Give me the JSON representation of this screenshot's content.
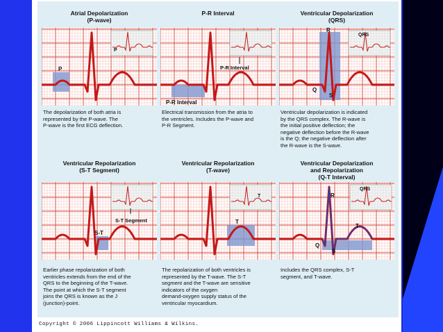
{
  "copyright": "Copyright © 2006 Lippincott Williams & Wilkins.",
  "panels": [
    {
      "key": "atrial-depolarization",
      "title_lines": [
        "Atrial Depolarization",
        "(P-wave)"
      ],
      "caption_lines": [
        "The depolarization of both atria is",
        "represented by the P-wave. The",
        "P-wave is the first ECG deflection."
      ],
      "labels": [
        {
          "id": "p-wave",
          "text": "P"
        },
        {
          "id": "inset-p",
          "text": "P"
        }
      ]
    },
    {
      "key": "pr-interval",
      "title_lines": [
        "P-R Interval"
      ],
      "caption_lines": [
        "Electrical transmission from the atria to",
        "the ventricles. Includes the P-wave and",
        "P-R Segment."
      ],
      "labels": [
        {
          "id": "pr-bottom",
          "text": "P-R Interval"
        },
        {
          "id": "pr-inset",
          "text": "P-R Interval"
        }
      ]
    },
    {
      "key": "ventricular-depolarization",
      "title_lines": [
        "Ventricular Depolarization",
        "(QRS)"
      ],
      "caption_lines": [
        "Ventricular depolarization is indicated",
        "by the QRS complex. The R-wave is",
        "the initial positive deflection; the",
        "negative deflection before the R-wave",
        "is the Q; the negative deflection after",
        "the R-wave is the S-wave."
      ],
      "labels": [
        {
          "id": "r",
          "text": "R"
        },
        {
          "id": "q",
          "text": "Q"
        },
        {
          "id": "s",
          "text": "S"
        },
        {
          "id": "inset-qrs",
          "text": "QRS"
        }
      ]
    },
    {
      "key": "st-segment",
      "title_lines": [
        "Ventricular Repolarization",
        "(S-T Segment)"
      ],
      "caption_lines": [
        "Earlier phase repolarization of both",
        "ventricles extends from the end of the",
        "QRS to the beginning of the T-wave.",
        "The point at which the S-T segment",
        "joins the QRS is known as the J",
        "(junction)-point."
      ],
      "labels": [
        {
          "id": "st",
          "text": "S-T"
        },
        {
          "id": "st-inset",
          "text": "S-T Segment"
        }
      ]
    },
    {
      "key": "t-wave",
      "title_lines": [
        "Ventricular Repolarization",
        "(T-wave)"
      ],
      "caption_lines": [
        "The repolarization of both ventricles is",
        "represented by the T-wave. The S-T",
        "segment and the T-wave are sensitive",
        "indicators of the oxygen",
        "demand-oxygen supply status of the",
        "ventricular myocardium."
      ],
      "labels": [
        {
          "id": "t",
          "text": "T"
        },
        {
          "id": "inset-t",
          "text": "T"
        }
      ]
    },
    {
      "key": "qt-interval",
      "title_lines": [
        "Ventricular Depolarization",
        "and Repolarization",
        "(Q-T Interval)"
      ],
      "caption_lines": [
        "Includes the QRS complex, S-T",
        "segment, and T-wave."
      ],
      "labels": [
        {
          "id": "r",
          "text": "R"
        },
        {
          "id": "q",
          "text": "Q"
        },
        {
          "id": "s",
          "text": "S"
        },
        {
          "id": "t",
          "text": "T"
        },
        {
          "id": "inset-qrs",
          "text": "QRS"
        }
      ]
    }
  ],
  "colors": {
    "grid_minor": "#f2b0a8",
    "grid_major": "#d0483c",
    "trace": "#c41818",
    "highlight": "#7f97cf",
    "inset_bg": "#f4f4f4",
    "inset_grid": "#c8c8c8"
  }
}
